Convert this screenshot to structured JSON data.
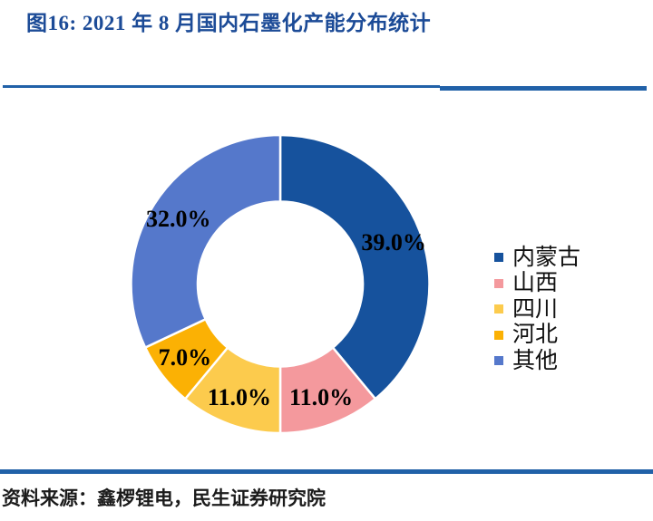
{
  "figure": {
    "title": "图16: 2021 年 8 月国内石墨化产能分布统计",
    "source": "资料来源：鑫椤锂电，民生证券研究院"
  },
  "chart_data": {
    "type": "pie",
    "subtype": "donut",
    "title": "2021 年 8 月国内石墨化产能分布统计",
    "categories": [
      "内蒙古",
      "山西",
      "四川",
      "河北",
      "其他"
    ],
    "values": [
      39.0,
      11.0,
      11.0,
      7.0,
      32.0
    ],
    "slice_labels": [
      "39.0%",
      "11.0%",
      "11.0%",
      "7.0%",
      "32.0%"
    ],
    "colors": [
      "#16529D",
      "#F4999D",
      "#FCCB4D",
      "#FBB104",
      "#5578CB"
    ],
    "start_angle_deg": 0,
    "direction": "clockwise",
    "donut_hole_ratio": 0.55,
    "legend_position": "right",
    "legend": [
      {
        "label": "内蒙古",
        "color": "#16529D"
      },
      {
        "label": "山西",
        "color": "#F4999D"
      },
      {
        "label": "四川",
        "color": "#FCCB4D"
      },
      {
        "label": "河北",
        "color": "#FBB104"
      },
      {
        "label": "其他",
        "color": "#5578CB"
      }
    ]
  },
  "theme": {
    "title_color": "#1C4B97",
    "rule_color": "#2161A8",
    "slice_label_color": "#000000",
    "background": "#FFFFFF"
  }
}
